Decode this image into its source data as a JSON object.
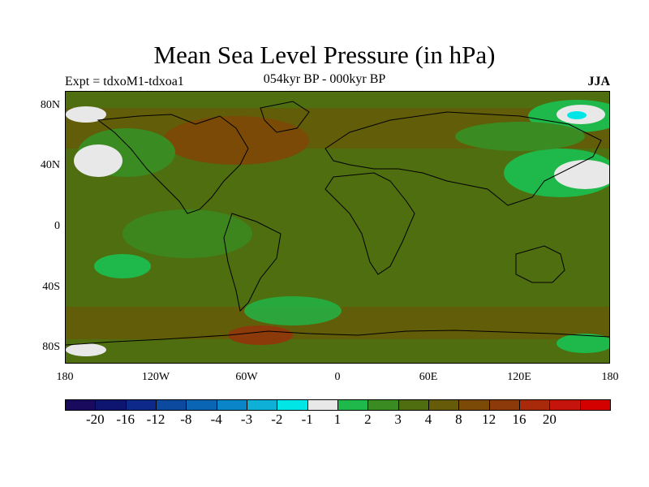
{
  "title": "Mean Sea Level Pressure (in hPa)",
  "left_label": "Expt = tdxoM1-tdxoa1",
  "center_label": "054kyr BP - 000kyr BP",
  "right_label": "JJA",
  "map": {
    "projection": "cylindrical-equidistant",
    "lon_range": [
      -180,
      180
    ],
    "lat_range": [
      -90,
      90
    ],
    "background_level": "3-4",
    "features": [
      {
        "name": "arctic-band",
        "level": "4-8"
      },
      {
        "name": "north-atlantic-high",
        "level": "8-12"
      },
      {
        "name": "north-pacific-low",
        "level": "-1-1"
      },
      {
        "name": "east-asia-low",
        "level": "-1-1"
      },
      {
        "name": "siberian-ridge",
        "level": "1-2"
      },
      {
        "name": "arctic-low",
        "level": "-2--1"
      },
      {
        "name": "tropical-pacific",
        "level": "2-3"
      },
      {
        "name": "southern-ocean-band",
        "level": "4-8"
      },
      {
        "name": "antarctic-coast-high",
        "level": "8-12"
      }
    ]
  },
  "lat_ticks": [
    "80N",
    "40N",
    "0",
    "40S",
    "80S"
  ],
  "lat_values": [
    80,
    40,
    0,
    -40,
    -80
  ],
  "lon_ticks": [
    "180",
    "120W",
    "60W",
    "0",
    "60E",
    "120E",
    "180"
  ],
  "lon_values": [
    -180,
    -120,
    -60,
    0,
    60,
    120,
    180
  ],
  "colorbar": {
    "colors": [
      "#1a0a5e",
      "#0e1570",
      "#0d2a8a",
      "#0c4aa0",
      "#0a66b5",
      "#0a86c8",
      "#0fb0d8",
      "#00e6e6",
      "#e8e8e8",
      "#1fb84a",
      "#3a8c22",
      "#4e6e10",
      "#655b08",
      "#7a4a06",
      "#8c3a0a",
      "#a82a0a",
      "#c4140c",
      "#d40000"
    ],
    "labels": [
      "-20",
      "-16",
      "-12",
      "-8",
      "-4",
      "-3",
      "-2",
      "-1",
      "1",
      "2",
      "3",
      "4",
      "8",
      "12",
      "16",
      "20"
    ]
  }
}
